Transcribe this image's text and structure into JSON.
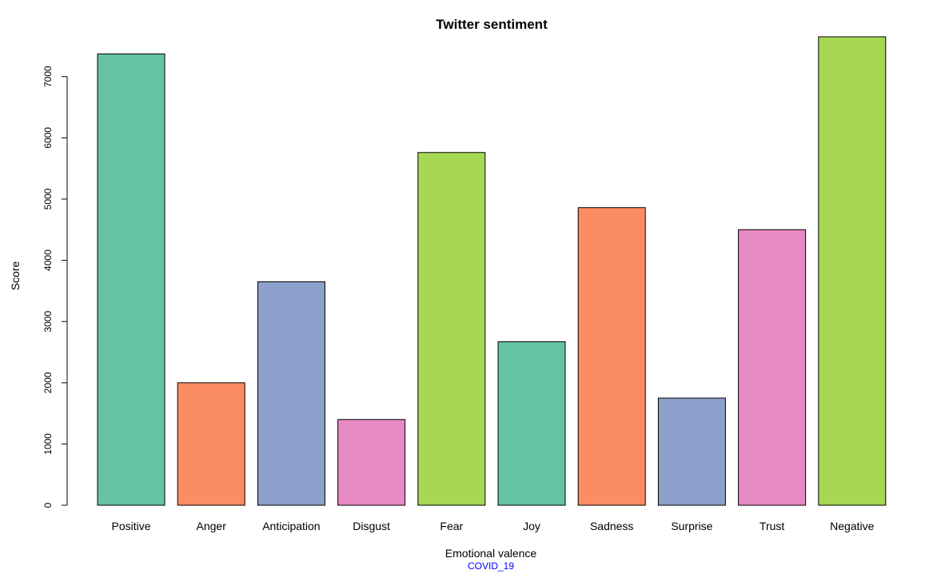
{
  "chart_data": {
    "type": "bar",
    "title": "Twitter sentiment",
    "xlabel": "Emotional valence",
    "ylabel": "Score",
    "subtitle": "COVID_19",
    "categories": [
      "Positive",
      "Anger",
      "Anticipation",
      "Disgust",
      "Fear",
      "Joy",
      "Sadness",
      "Surprise",
      "Trust",
      "Negative"
    ],
    "values": [
      7370,
      2000,
      3650,
      1400,
      5760,
      2670,
      4860,
      1750,
      4500,
      7650
    ],
    "colors": [
      "#66C2A5",
      "#FC8D62",
      "#8DA0CB",
      "#E78AC3",
      "#A6D854",
      "#66C2A5",
      "#FC8D62",
      "#8DA0CB",
      "#E78AC3",
      "#A6D854"
    ],
    "yticks": [
      0,
      1000,
      2000,
      3000,
      4000,
      5000,
      6000,
      7000
    ],
    "ylim": [
      0,
      7650
    ],
    "grid": false,
    "legend": "none"
  }
}
